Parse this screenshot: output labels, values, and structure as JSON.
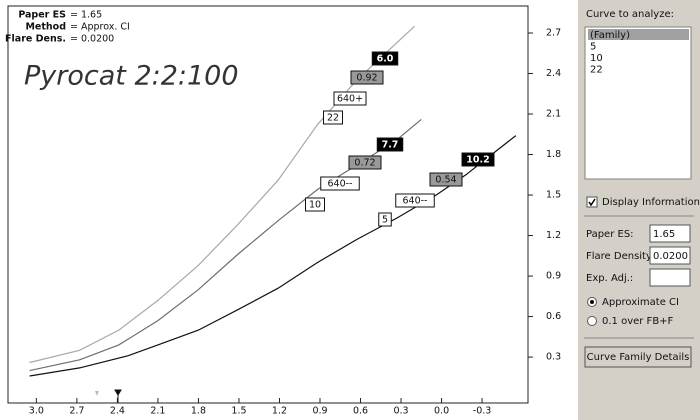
{
  "chart_data": {
    "type": "line",
    "title": "Pyrocat 2:2:100",
    "info": [
      {
        "label": "Paper ES",
        "value": "= 1.65"
      },
      {
        "label": "Method",
        "value": "= Approx. CI"
      },
      {
        "label": "Flare Dens.",
        "value": "= 0.0200"
      }
    ],
    "xlim": [
      3.21,
      -0.64
    ],
    "ylim": [
      -0.04,
      2.9
    ],
    "xticks": [
      {
        "value": 3,
        "label": "3.0"
      },
      2.7,
      2.4,
      2.1,
      1.8,
      1.5,
      1.2,
      0.9,
      0.6,
      0.3,
      {
        "value": 0,
        "label": "0.0"
      },
      -0.3
    ],
    "yticks": [
      0.3,
      0.6,
      0.9,
      1.2,
      1.5,
      1.8,
      2.1,
      2.4,
      2.7
    ],
    "grid": false,
    "series": [
      {
        "name": "22",
        "color": "#a8a8a8",
        "iso": "640+",
        "gradient": "0.92",
        "zone": "6.0",
        "x": [
          3.05,
          2.68,
          2.39,
          2.1,
          1.8,
          1.51,
          1.21,
          0.92,
          0.63,
          0.2
        ],
        "values": [
          0.26,
          0.35,
          0.5,
          0.72,
          0.98,
          1.28,
          1.61,
          2.02,
          2.35,
          2.75
        ]
      },
      {
        "name": "10",
        "color": "#6e6e6e",
        "iso": "640--",
        "gradient": "0.72",
        "zone": "7.7",
        "x": [
          3.05,
          2.68,
          2.39,
          2.1,
          1.8,
          1.51,
          1.21,
          0.92,
          0.63,
          0.33,
          0.15
        ],
        "values": [
          0.2,
          0.28,
          0.39,
          0.57,
          0.8,
          1.06,
          1.31,
          1.54,
          1.72,
          1.91,
          2.06
        ]
      },
      {
        "name": "5",
        "color": "#111111",
        "iso": "640--",
        "gradient": "0.54",
        "zone": "10.2",
        "x": [
          3.05,
          2.68,
          2.32,
          2.1,
          1.8,
          1.51,
          1.21,
          0.92,
          0.63,
          0.33,
          0.04,
          -0.18,
          -0.55
        ],
        "values": [
          0.16,
          0.22,
          0.31,
          0.39,
          0.5,
          0.65,
          0.81,
          1.0,
          1.17,
          1.33,
          1.5,
          1.65,
          1.94
        ]
      }
    ]
  },
  "panel": {
    "list_label": "Curve to analyze:",
    "list_items": [
      "(Family)",
      "5",
      "10",
      "22"
    ],
    "checkbox": "Display Information",
    "fields": [
      {
        "label": "Paper ES:",
        "value": "1.65"
      },
      {
        "label": "Flare Density:",
        "value": "0.0200"
      },
      {
        "label": "Exp. Adj.:"
      }
    ],
    "radios": [
      "Approximate CI",
      "0.1 over FB+F"
    ],
    "button": "Curve Family Details"
  }
}
